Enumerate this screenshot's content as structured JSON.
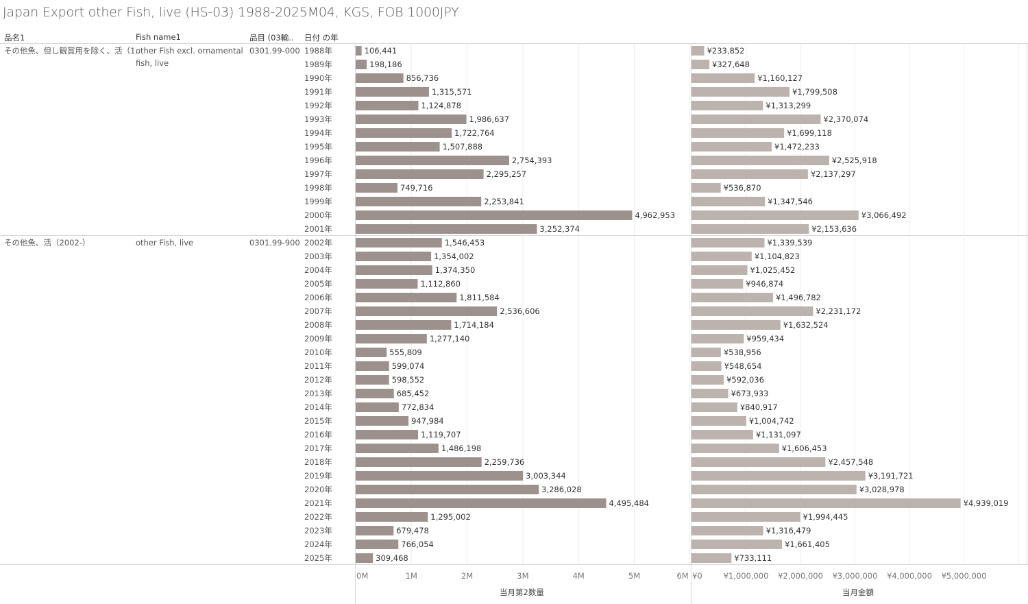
{
  "title": "Japan Export other Fish, live (HS-03) 1988-2025M04, KGS, FOB 1000JPY",
  "headers": {
    "col1": "品名1",
    "col2": "Fish name1",
    "col3": "品目 (03輸..",
    "col4": "日付 の年"
  },
  "groups": [
    {
      "name_jp": "その他魚、但し観賞用を除く、活（1..",
      "name_en": "other Fish excl. ornamental fish, live",
      "code": "0301.99-000"
    },
    {
      "name_jp": "その他魚、活（2002-）",
      "name_en": "other Fish, live",
      "code": "0301.99-900"
    }
  ],
  "colors": {
    "quantity_bar": "#9d918d",
    "amount_bar": "#bcb2ae",
    "grid": "#ececec",
    "divider": "#d8d8d8"
  },
  "chart_data": [
    {
      "type": "bar",
      "orientation": "horizontal",
      "xlabel": "当月第2数量",
      "xlim": [
        0,
        6000000
      ],
      "ticks": [
        0,
        1000000,
        2000000,
        3000000,
        4000000,
        5000000,
        6000000
      ],
      "tick_labels": [
        "0M",
        "1M",
        "2M",
        "3M",
        "4M",
        "5M",
        "6M"
      ],
      "grid": true,
      "categories": [
        "1988年",
        "1989年",
        "1990年",
        "1991年",
        "1992年",
        "1993年",
        "1994年",
        "1995年",
        "1996年",
        "1997年",
        "1998年",
        "1999年",
        "2000年",
        "2001年",
        "2002年",
        "2003年",
        "2004年",
        "2005年",
        "2006年",
        "2007年",
        "2008年",
        "2009年",
        "2010年",
        "2011年",
        "2012年",
        "2013年",
        "2014年",
        "2015年",
        "2016年",
        "2017年",
        "2018年",
        "2019年",
        "2020年",
        "2021年",
        "2022年",
        "2023年",
        "2024年",
        "2025年"
      ],
      "values": [
        106441,
        198186,
        856736,
        1315571,
        1124878,
        1986637,
        1722764,
        1507888,
        2754393,
        2295257,
        749716,
        2253841,
        4962953,
        3252374,
        1546453,
        1354002,
        1374350,
        1112860,
        1811584,
        2536606,
        1714184,
        1277140,
        555809,
        599074,
        598552,
        685452,
        772834,
        947984,
        1119707,
        1486198,
        2259736,
        3003344,
        3286028,
        4495484,
        1295002,
        679478,
        766054,
        309468
      ],
      "value_labels": [
        "106,441",
        "198,186",
        "856,736",
        "1,315,571",
        "1,124,878",
        "1,986,637",
        "1,722,764",
        "1,507,888",
        "2,754,393",
        "2,295,257",
        "749,716",
        "2,253,841",
        "4,962,953",
        "3,252,374",
        "1,546,453",
        "1,354,002",
        "1,374,350",
        "1,112,860",
        "1,811,584",
        "2,536,606",
        "1,714,184",
        "1,277,140",
        "555,809",
        "599,074",
        "598,552",
        "685,452",
        "772,834",
        "947,984",
        "1,119,707",
        "1,486,198",
        "2,259,736",
        "3,003,344",
        "3,286,028",
        "4,495,484",
        "1,295,002",
        "679,478",
        "766,054",
        "309,468"
      ]
    },
    {
      "type": "bar",
      "orientation": "horizontal",
      "xlabel": "当月金額",
      "xlim": [
        0,
        6000000
      ],
      "ticks": [
        0,
        1000000,
        2000000,
        3000000,
        4000000,
        5000000
      ],
      "tick_labels": [
        "¥0",
        "¥1,000,000",
        "¥2,000,000",
        "¥3,000,000",
        "¥4,000,000",
        "¥5,000,000"
      ],
      "grid": true,
      "categories": [
        "1988年",
        "1989年",
        "1990年",
        "1991年",
        "1992年",
        "1993年",
        "1994年",
        "1995年",
        "1996年",
        "1997年",
        "1998年",
        "1999年",
        "2000年",
        "2001年",
        "2002年",
        "2003年",
        "2004年",
        "2005年",
        "2006年",
        "2007年",
        "2008年",
        "2009年",
        "2010年",
        "2011年",
        "2012年",
        "2013年",
        "2014年",
        "2015年",
        "2016年",
        "2017年",
        "2018年",
        "2019年",
        "2020年",
        "2021年",
        "2022年",
        "2023年",
        "2024年",
        "2025年"
      ],
      "values": [
        233852,
        327648,
        1160127,
        1799508,
        1313299,
        2370074,
        1699118,
        1472233,
        2525918,
        2137297,
        536870,
        1347546,
        3066492,
        2153636,
        1339539,
        1104823,
        1025452,
        946874,
        1496782,
        2231172,
        1632524,
        959434,
        538956,
        548654,
        592036,
        673933,
        840917,
        1004742,
        1131097,
        1606453,
        2457548,
        3191721,
        3028978,
        4939019,
        1994445,
        1316479,
        1661405,
        733111
      ],
      "value_labels": [
        "¥233,852",
        "¥327,648",
        "¥1,160,127",
        "¥1,799,508",
        "¥1,313,299",
        "¥2,370,074",
        "¥1,699,118",
        "¥1,472,233",
        "¥2,525,918",
        "¥2,137,297",
        "¥536,870",
        "¥1,347,546",
        "¥3,066,492",
        "¥2,153,636",
        "¥1,339,539",
        "¥1,104,823",
        "¥1,025,452",
        "¥946,874",
        "¥1,496,782",
        "¥2,231,172",
        "¥1,632,524",
        "¥959,434",
        "¥538,956",
        "¥548,654",
        "¥592,036",
        "¥673,933",
        "¥840,917",
        "¥1,004,742",
        "¥1,131,097",
        "¥1,606,453",
        "¥2,457,548",
        "¥3,191,721",
        "¥3,028,978",
        "¥4,939,019",
        "¥1,994,445",
        "¥1,316,479",
        "¥1,661,405",
        "¥733,111"
      ]
    }
  ]
}
